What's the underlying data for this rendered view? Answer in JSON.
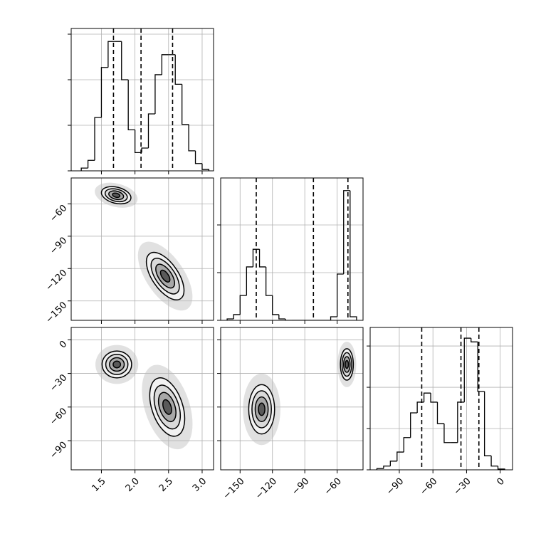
{
  "chart_data": [
    {
      "type": "histogram",
      "color": "#000000",
      "grid": true,
      "bins": [
        1.2,
        1.3,
        1.4,
        1.5,
        1.6,
        1.7,
        1.8,
        1.9,
        2.0,
        2.1,
        2.2,
        2.3,
        2.4,
        2.5,
        2.6,
        2.7,
        2.8,
        2.9,
        3.0,
        3.1
      ],
      "counts": [
        60,
        230,
        1170,
        2270,
        2840,
        2840,
        2000,
        900,
        400,
        500,
        1250,
        2110,
        2550,
        2550,
        1900,
        1020,
        440,
        160,
        30
      ],
      "quantiles": [
        1.68,
        2.09,
        2.56
      ],
      "xlim": [
        1.05,
        3.17
      ],
      "xticks": [
        1.5,
        {
          "value": 2,
          "label": "2.0"
        },
        2.5,
        {
          "value": 3,
          "label": "3.0"
        }
      ],
      "ylim": [
        0,
        3125
      ],
      "yticks": [
        0,
        1000,
        2000,
        3000
      ]
    },
    {
      "type": "density",
      "grid": true,
      "levels": [
        0.5,
        1,
        1.5,
        2
      ],
      "components": [
        {
          "mean": [
            1.72,
            -52
          ],
          "sd": [
            0.11,
            4
          ],
          "corr": -0.3
        },
        {
          "mean": [
            2.45,
            -127
          ],
          "sd": [
            0.14,
            11
          ],
          "corr": -0.6
        }
      ],
      "xlim": [
        1.05,
        3.17
      ],
      "xticks": [
        1.5,
        {
          "value": 2,
          "label": "2.0"
        },
        2.5,
        {
          "value": 3,
          "label": "3.0"
        }
      ],
      "ylim": [
        -168,
        -36
      ],
      "yticks": [
        {
          "value": -150,
          "label": "−150"
        },
        {
          "value": -120,
          "label": "−120"
        },
        {
          "value": -90,
          "label": "−90"
        },
        {
          "value": -60,
          "label": "−60"
        }
      ]
    },
    {
      "type": "histogram",
      "color": "#000000",
      "grid": true,
      "bins": [
        -162,
        -156,
        -150,
        -144,
        -138,
        -132,
        -126,
        -120,
        -114,
        -108,
        -102,
        -96,
        -90,
        -84,
        -78,
        -72,
        -66,
        -60,
        -54,
        -48,
        -42
      ],
      "counts": [
        30,
        120,
        520,
        1120,
        1490,
        1120,
        520,
        120,
        30,
        0,
        0,
        0,
        0,
        0,
        0,
        0,
        75,
        970,
        2720,
        75
      ],
      "quantiles": [
        -135,
        -82,
        -50
      ],
      "xlim": [
        -168,
        -36
      ],
      "xticks": [
        {
          "value": -150,
          "label": "−150"
        },
        {
          "value": -120,
          "label": "−120"
        },
        {
          "value": -90,
          "label": "−90"
        },
        {
          "value": -60,
          "label": "−60"
        }
      ],
      "ylim": [
        0,
        2985
      ],
      "yticks": [
        0,
        1000,
        2000
      ]
    },
    {
      "type": "density",
      "grid": true,
      "levels": [
        0.5,
        1,
        1.5,
        2
      ],
      "components": [
        {
          "mean": [
            1.73,
            -22
          ],
          "sd": [
            0.11,
            6
          ],
          "corr": 0
        },
        {
          "mean": [
            2.48,
            -60
          ],
          "sd": [
            0.13,
            13
          ],
          "corr": -0.4
        }
      ],
      "xlim": [
        1.05,
        3.17
      ],
      "xticks": [
        1.5,
        {
          "value": 2,
          "label": "2.0"
        },
        2.5,
        {
          "value": 3,
          "label": "3.0"
        }
      ],
      "ylim": [
        -116,
        11
      ],
      "yticks": [
        {
          "value": -90,
          "label": "−90"
        },
        {
          "value": -60,
          "label": "−60"
        },
        {
          "value": -30,
          "label": "−30"
        },
        0
      ]
    },
    {
      "type": "density",
      "grid": true,
      "levels": [
        0.5,
        1,
        1.5,
        2
      ],
      "components": [
        {
          "mean": [
            -130,
            -62
          ],
          "sd": [
            6,
            11
          ],
          "corr": 0
        },
        {
          "mean": [
            -51,
            -22
          ],
          "sd": [
            3,
            7
          ],
          "corr": 0
        }
      ],
      "xlim": [
        -168,
        -36
      ],
      "xticks": [
        {
          "value": -150,
          "label": "−150"
        },
        {
          "value": -120,
          "label": "−120"
        },
        {
          "value": -90,
          "label": "−90"
        },
        {
          "value": -60,
          "label": "−60"
        }
      ],
      "ylim": [
        -116,
        11
      ],
      "yticks": [
        {
          "value": -90,
          "label": "−90"
        },
        {
          "value": -60,
          "label": "−60"
        },
        {
          "value": -30,
          "label": "−30"
        },
        0
      ]
    },
    {
      "type": "histogram",
      "color": "#000000",
      "grid": true,
      "bins": [
        -110,
        -104,
        -98,
        -92,
        -86,
        -80,
        -74,
        -68,
        -62,
        -56,
        -50,
        -44,
        -38,
        -32,
        -26,
        -20,
        -14,
        -8,
        -2,
        4
      ],
      "counts": [
        30,
        90,
        210,
        430,
        780,
        1380,
        1640,
        1860,
        1640,
        1120,
        660,
        660,
        1640,
        3190,
        3100,
        1900,
        340,
        90,
        20
      ],
      "quantiles": [
        -70,
        -35,
        -19
      ],
      "xlim": [
        -116,
        11
      ],
      "xticks": [
        {
          "value": -90,
          "label": "−90"
        },
        {
          "value": -60,
          "label": "−60"
        },
        {
          "value": -30,
          "label": "−30"
        },
        0
      ],
      "ylim": [
        0,
        3450
      ],
      "yticks": [
        0,
        1000,
        2000,
        3000
      ]
    }
  ]
}
